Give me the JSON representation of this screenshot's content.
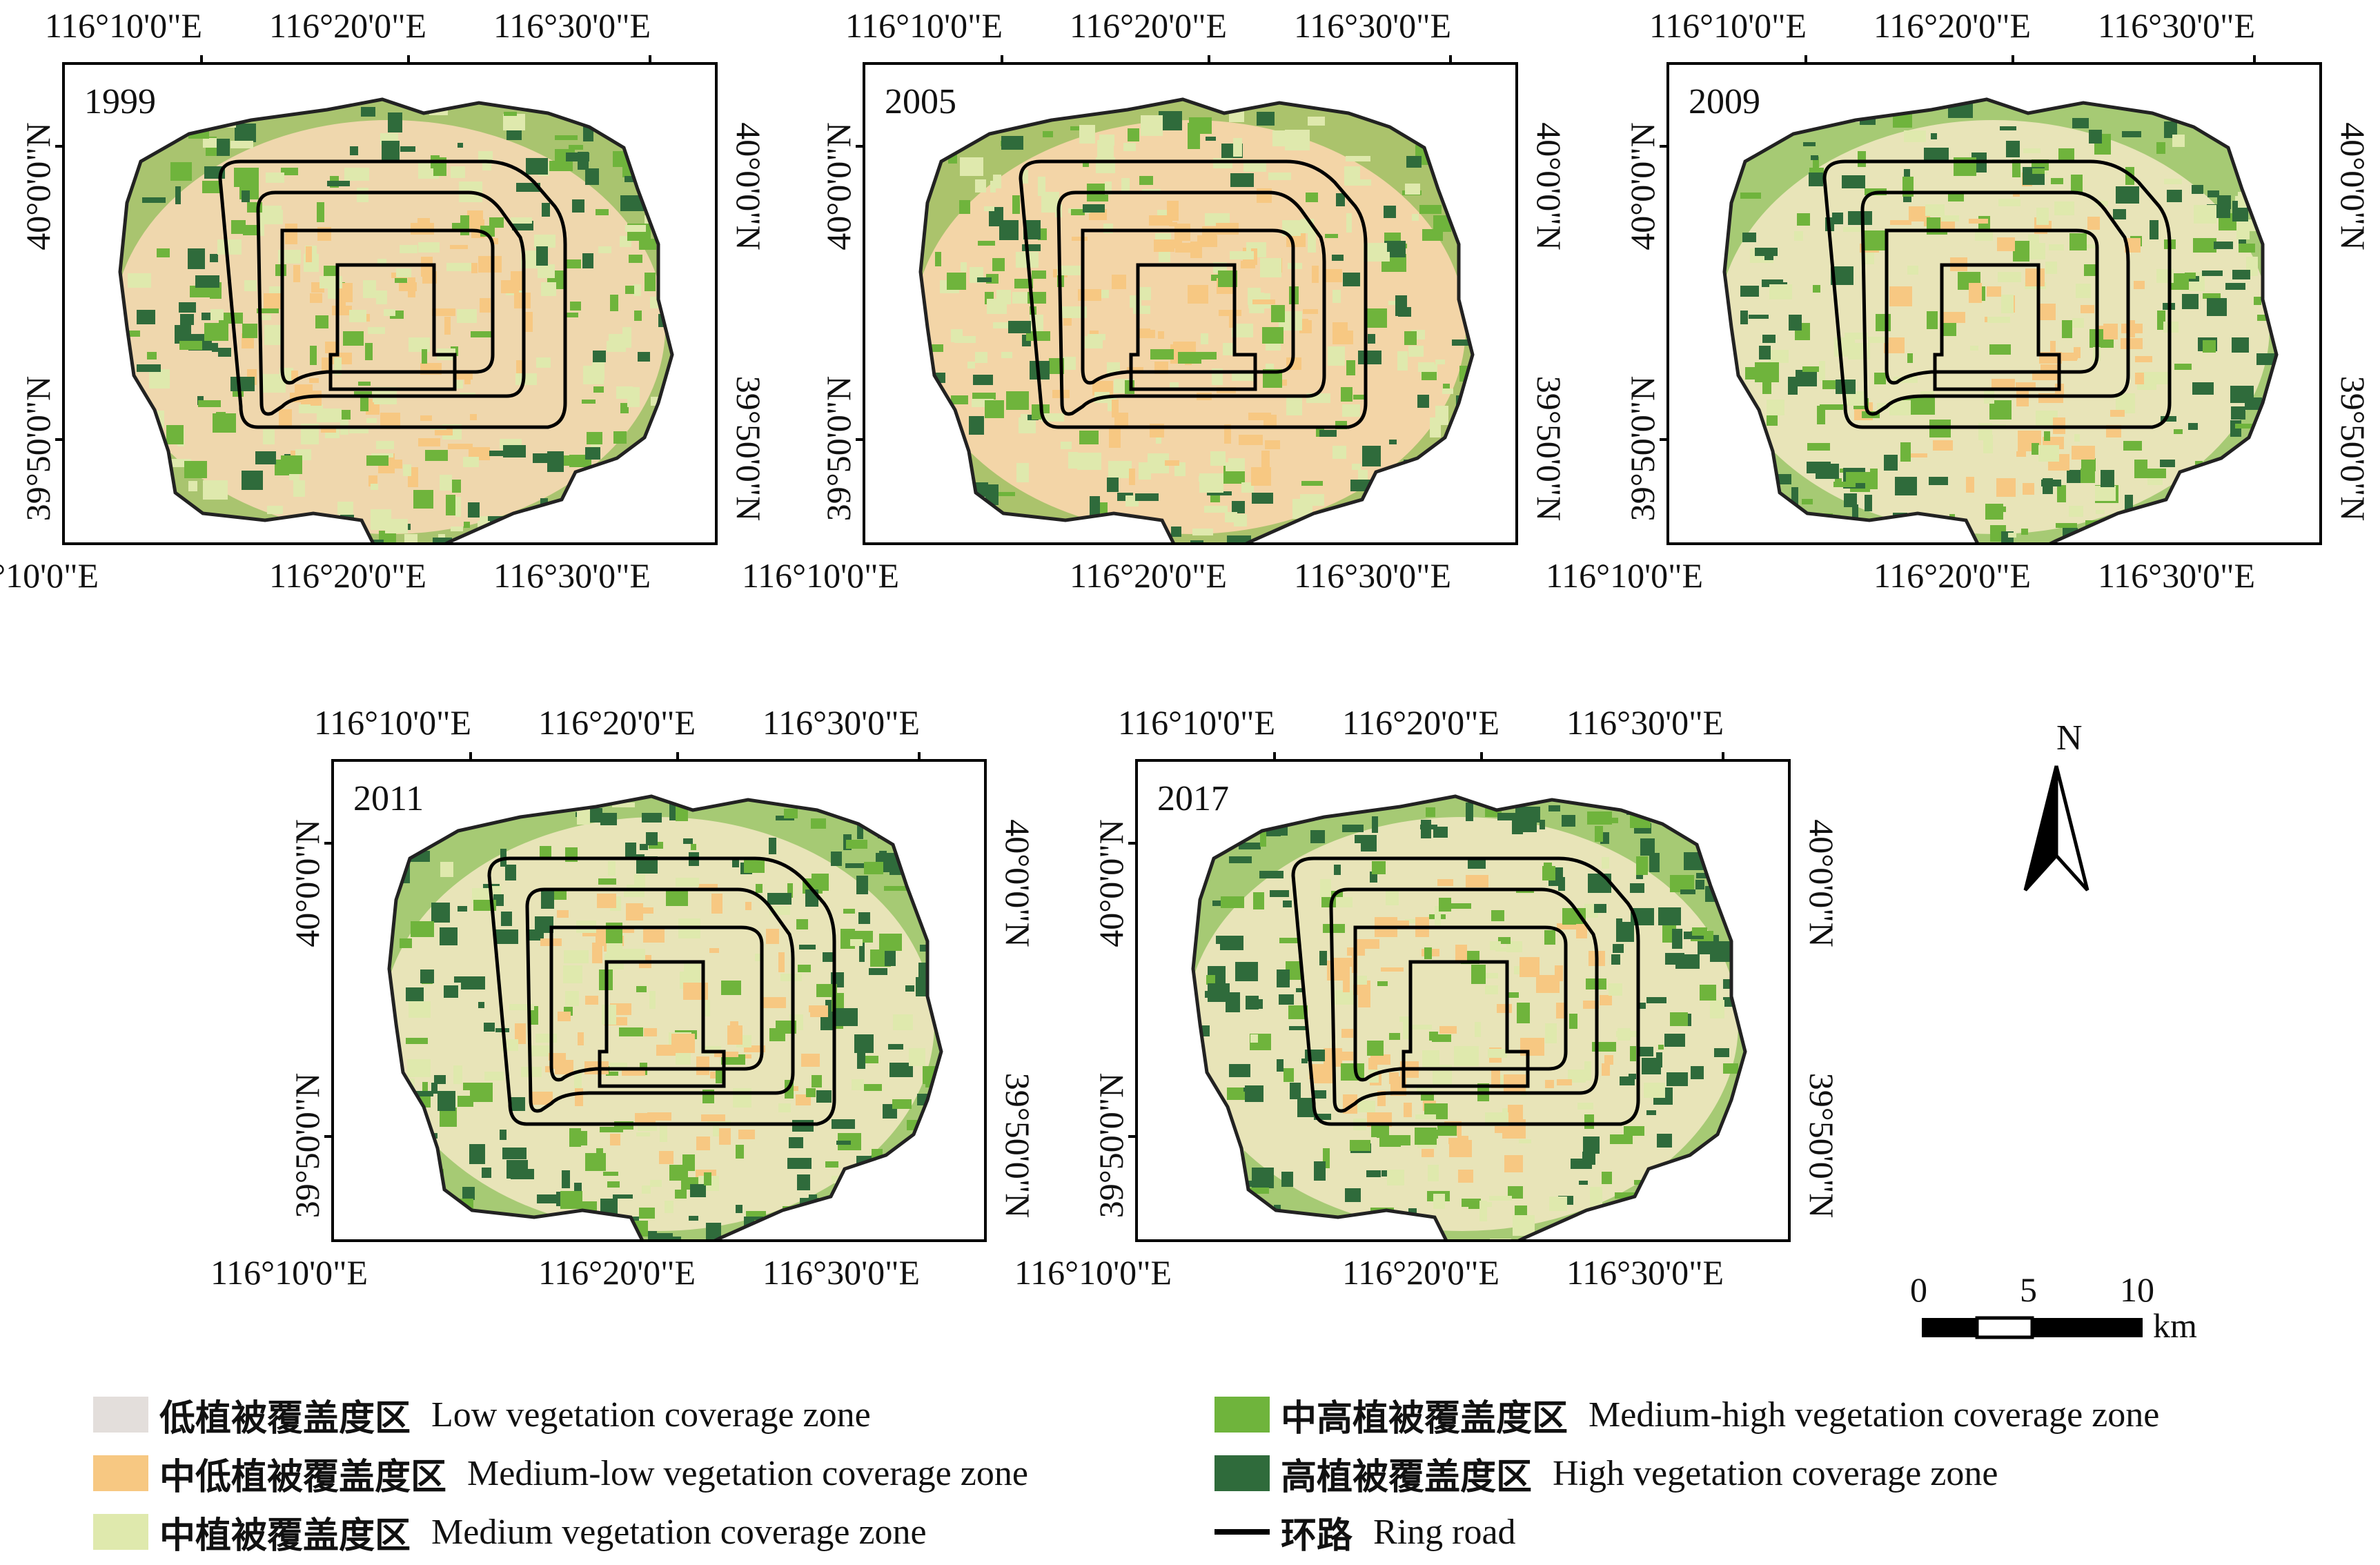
{
  "panels": [
    {
      "year": "1999"
    },
    {
      "year": "2005"
    },
    {
      "year": "2009"
    },
    {
      "year": "2011"
    },
    {
      "year": "2017"
    }
  ],
  "lon_labels": [
    "116°10'0\"E",
    "116°20'0\"E",
    "116°30'0\"E"
  ],
  "lat_labels": [
    "40°0'0\"N",
    "39°50'0\"N"
  ],
  "north_arrow": {
    "label": "N"
  },
  "scale_bar": {
    "ticks": [
      "0",
      "5",
      "10"
    ],
    "unit": "km"
  },
  "legend": [
    {
      "zh": "低植被覆盖度区",
      "en": "Low vegetation coverage zone",
      "color": "#e3dedb"
    },
    {
      "zh": "中低植被覆盖度区",
      "en": "Medium-low vegetation coverage zone",
      "color": "#f7c882"
    },
    {
      "zh": "中植被覆盖度区",
      "en": "Medium vegetation coverage zone",
      "color": "#dfe9ad"
    },
    {
      "zh": "中高植被覆盖度区",
      "en": "Medium-high vegetation coverage zone",
      "color": "#6fb43c"
    },
    {
      "zh": "高植被覆盖度区",
      "en": "High vegetation coverage zone",
      "color": "#2f6b3b"
    },
    {
      "zh": "环路",
      "en": "Ring road",
      "color": "#000000"
    }
  ]
}
